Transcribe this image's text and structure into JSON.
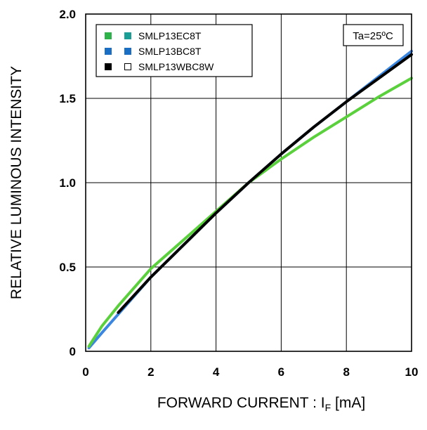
{
  "chart_data": {
    "type": "line",
    "xlabel_main": "FORWARD CURRENT : I",
    "xlabel_sub": "F",
    "xlabel_unit": " [mA]",
    "ylabel": "RELATIVE LUMINOUS INTENSITY",
    "xlim": [
      0,
      10
    ],
    "ylim": [
      0,
      2.0
    ],
    "x_ticks": [
      "0",
      "2",
      "4",
      "6",
      "8",
      "10"
    ],
    "y_ticks": [
      "0",
      "0.5",
      "1.0",
      "1.5",
      "2.0"
    ],
    "grid": true,
    "condition": "Ta=25ºC",
    "legend_position": "top-left",
    "legend": [
      {
        "label": "SMLP13EC8T",
        "colors": [
          "#2db34a",
          "#1a9e96"
        ],
        "hollow": false
      },
      {
        "label": "SMLP13BC8T",
        "colors": [
          "#1a6fc4",
          "#1a6fc4"
        ],
        "hollow": false
      },
      {
        "label": "SMLP13WBC8W",
        "colors": [
          "#000000",
          "#ffffff"
        ],
        "hollow": true
      }
    ],
    "series": [
      {
        "name": "SMLP13EC8T",
        "color": "#5ad13c",
        "x": [
          0.1,
          0.5,
          1,
          2,
          3,
          4,
          5,
          6,
          7,
          8,
          9,
          10
        ],
        "y": [
          0.03,
          0.15,
          0.27,
          0.49,
          0.66,
          0.83,
          1.0,
          1.14,
          1.27,
          1.39,
          1.51,
          1.62
        ]
      },
      {
        "name": "SMLP13BC8T",
        "color": "#3a86e0",
        "x": [
          0.1,
          0.5,
          1,
          2,
          3,
          4,
          5,
          6,
          7,
          8,
          9,
          10
        ],
        "y": [
          0.02,
          0.11,
          0.22,
          0.44,
          0.63,
          0.82,
          1.0,
          1.17,
          1.33,
          1.48,
          1.63,
          1.78
        ]
      },
      {
        "name": "SMLP13WBC8W",
        "color": "#000000",
        "x": [
          1,
          2,
          3,
          4,
          5,
          6,
          7,
          8,
          9,
          10
        ],
        "y": [
          0.23,
          0.44,
          0.63,
          0.82,
          1.0,
          1.17,
          1.33,
          1.48,
          1.62,
          1.76
        ]
      }
    ]
  }
}
